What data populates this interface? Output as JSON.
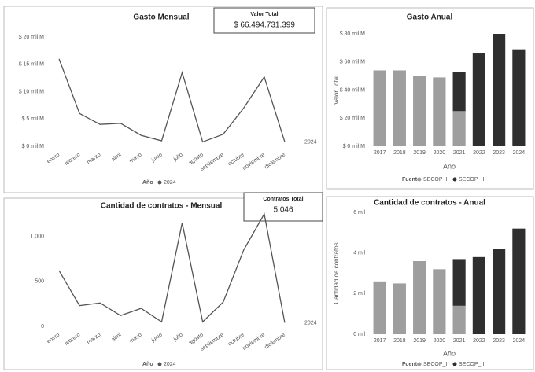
{
  "chart_data": [
    {
      "type": "line",
      "title": "Gasto Mensual",
      "card_title": "Valor Total",
      "card_value": "$ 66.494.731.399",
      "legend_title": "Año",
      "categories": [
        "enero",
        "febrero",
        "marzo",
        "abril",
        "mayo",
        "junio",
        "julio",
        "agosto",
        "septiembre",
        "octubre",
        "noviembre",
        "diciembre"
      ],
      "series": [
        {
          "name": "2024",
          "color": "#555555",
          "values": [
            16,
            6,
            4,
            4.2,
            2,
            1,
            13.5,
            0.8,
            2.2,
            7,
            12.7,
            0.8
          ]
        }
      ],
      "ylim": [
        0,
        20
      ],
      "yticks": [
        {
          "value": 0,
          "label": "$ 0 mil M"
        },
        {
          "value": 5,
          "label": "$ 5 mil M"
        },
        {
          "value": 10,
          "label": "$ 10 mil M"
        },
        {
          "value": 15,
          "label": "$ 15 mil M"
        },
        {
          "value": 20,
          "label": "$ 20 mil M"
        }
      ]
    },
    {
      "type": "bar",
      "title": "Gasto Anual",
      "x_label": "Año",
      "y_label": "Valor Total",
      "legend_title": "Fuente",
      "categories": [
        "2017",
        "2018",
        "2019",
        "2020",
        "2021",
        "2022",
        "2023",
        "2024"
      ],
      "series": [
        {
          "name": "SECOP_I",
          "color": "#9e9e9e",
          "values": [
            54,
            54,
            50,
            49,
            25,
            null,
            null,
            null
          ]
        },
        {
          "name": "SECOP_II",
          "color": "#2f2f2f",
          "values": [
            null,
            null,
            null,
            null,
            28,
            66,
            80,
            69
          ]
        }
      ],
      "ylim": [
        0,
        80
      ],
      "yticks": [
        {
          "value": 0,
          "label": "$ 0 mil M"
        },
        {
          "value": 20,
          "label": "$ 20 mil M"
        },
        {
          "value": 40,
          "label": "$ 40 mil M"
        },
        {
          "value": 60,
          "label": "$ 60 mil M"
        },
        {
          "value": 80,
          "label": "$ 80 mil M"
        }
      ]
    },
    {
      "type": "line",
      "title": "Cantidad de contratos - Mensual",
      "card_title": "Contratos Total",
      "card_value": "5.046",
      "legend_title": "Año",
      "categories": [
        "enero",
        "febrero",
        "marzo",
        "abril",
        "mayo",
        "junio",
        "julio",
        "agosto",
        "septiembre",
        "octubre",
        "noviembre",
        "diciembre"
      ],
      "series": [
        {
          "name": "2024",
          "color": "#555555",
          "values": [
            620,
            230,
            260,
            120,
            200,
            50,
            1150,
            50,
            270,
            850,
            1250,
            40
          ]
        }
      ],
      "ylim": [
        0,
        1250
      ],
      "yticks": [
        0,
        500,
        {
          "value": 1000,
          "label": "1.000"
        }
      ]
    },
    {
      "type": "bar",
      "title": "Cantidad de contratos - Anual",
      "x_label": "Año",
      "y_label": "Cantidad de contratos",
      "legend_title": "Fuente",
      "categories": [
        "2017",
        "2018",
        "2019",
        "2020",
        "2021",
        "2022",
        "2023",
        "2024"
      ],
      "series": [
        {
          "name": "SECOP_I",
          "color": "#9e9e9e",
          "values": [
            2.6,
            2.5,
            3.6,
            3.2,
            1.4,
            null,
            null,
            null
          ]
        },
        {
          "name": "SECOP_II",
          "color": "#2f2f2f",
          "values": [
            null,
            null,
            null,
            null,
            2.3,
            3.8,
            4.2,
            5.2
          ]
        }
      ],
      "ylim": [
        0,
        6
      ],
      "yticks": [
        {
          "value": 0,
          "label": "0 mil"
        },
        {
          "value": 2,
          "label": "2 mil"
        },
        {
          "value": 4,
          "label": "4 mil"
        },
        {
          "value": 6,
          "label": "6 mil"
        }
      ]
    }
  ]
}
